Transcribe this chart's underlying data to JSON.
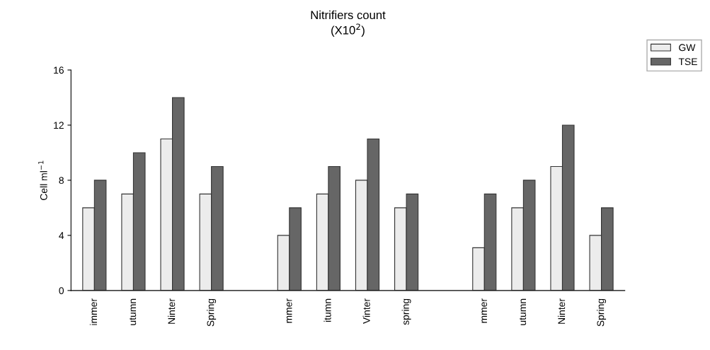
{
  "chart_data": {
    "type": "bar",
    "title": "Nitrifiers count\n(X10$^{2}$)",
    "ylabel": "Cell ml$^{−1}$",
    "categories": [
      "immer",
      "utumn",
      "Ninter",
      "Spring",
      null,
      "mmer",
      "itumn",
      "Vinter",
      "spring",
      null,
      "mmer",
      "utumn",
      "Ninter",
      "Spring"
    ],
    "series": [
      {
        "name": "GW",
        "color": "#ececec",
        "values": [
          6,
          7,
          11,
          7,
          null,
          4,
          7,
          8,
          6,
          null,
          3.1,
          6,
          9,
          4
        ]
      },
      {
        "name": "TSE",
        "color": "#666666",
        "values": [
          8,
          10,
          14,
          9,
          null,
          6,
          9,
          11,
          7,
          null,
          7,
          8,
          12,
          6
        ]
      }
    ],
    "ylim": [
      0,
      16
    ],
    "yticks": [
      0,
      4,
      8,
      12,
      16
    ],
    "grid": false,
    "legend": "top right"
  }
}
